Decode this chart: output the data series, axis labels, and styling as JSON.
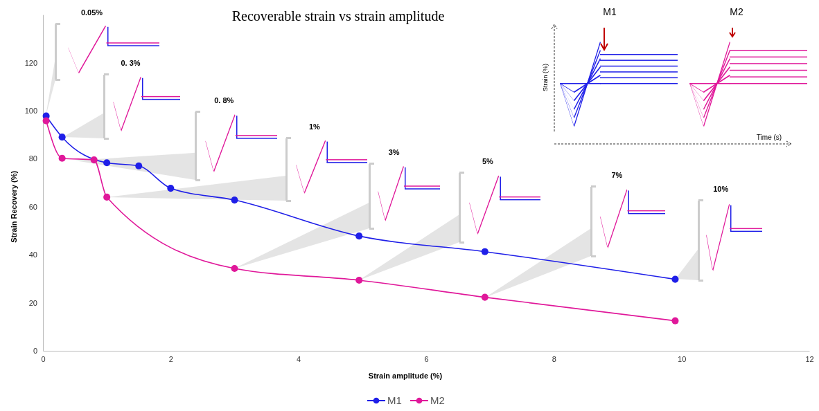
{
  "chart_data": {
    "type": "line",
    "title": "Recoverable strain vs strain amplitude",
    "xlabel": "Strain amplitude (%)",
    "ylabel": "Strain Recovery (%)",
    "xlim": [
      0,
      12
    ],
    "xticks": [
      0,
      2,
      4,
      6,
      8,
      10,
      12
    ],
    "ylim": [
      0,
      140
    ],
    "yticks": [
      0,
      20,
      40,
      60,
      80,
      100,
      120
    ],
    "series": [
      {
        "name": "M1",
        "color": "#1f1fe8",
        "x": [
          0.05,
          0.3,
          0.8,
          1,
          1.5,
          2,
          3,
          4.95,
          6.92,
          9.9
        ],
        "values": [
          97.8,
          89,
          null,
          78.3,
          77,
          67.7,
          62.8,
          47.8,
          41.3,
          29.8
        ]
      },
      {
        "name": "M2",
        "color": "#e0189a",
        "x": [
          0.05,
          0.3,
          0.8,
          1,
          3,
          4.95,
          6.92,
          9.9
        ],
        "values": [
          95.8,
          80.2,
          79.5,
          64,
          34.3,
          29.4,
          22.3,
          12.5
        ]
      }
    ],
    "marker": "circle",
    "legend": "bottom",
    "grid": false,
    "annotations": [
      "0.05%",
      "0. 3%",
      "0. 8%",
      "1%",
      "3%",
      "5%",
      "7%",
      "10%",
      "M1",
      "M2",
      "Strain (%)",
      "Time (s)"
    ]
  }
}
